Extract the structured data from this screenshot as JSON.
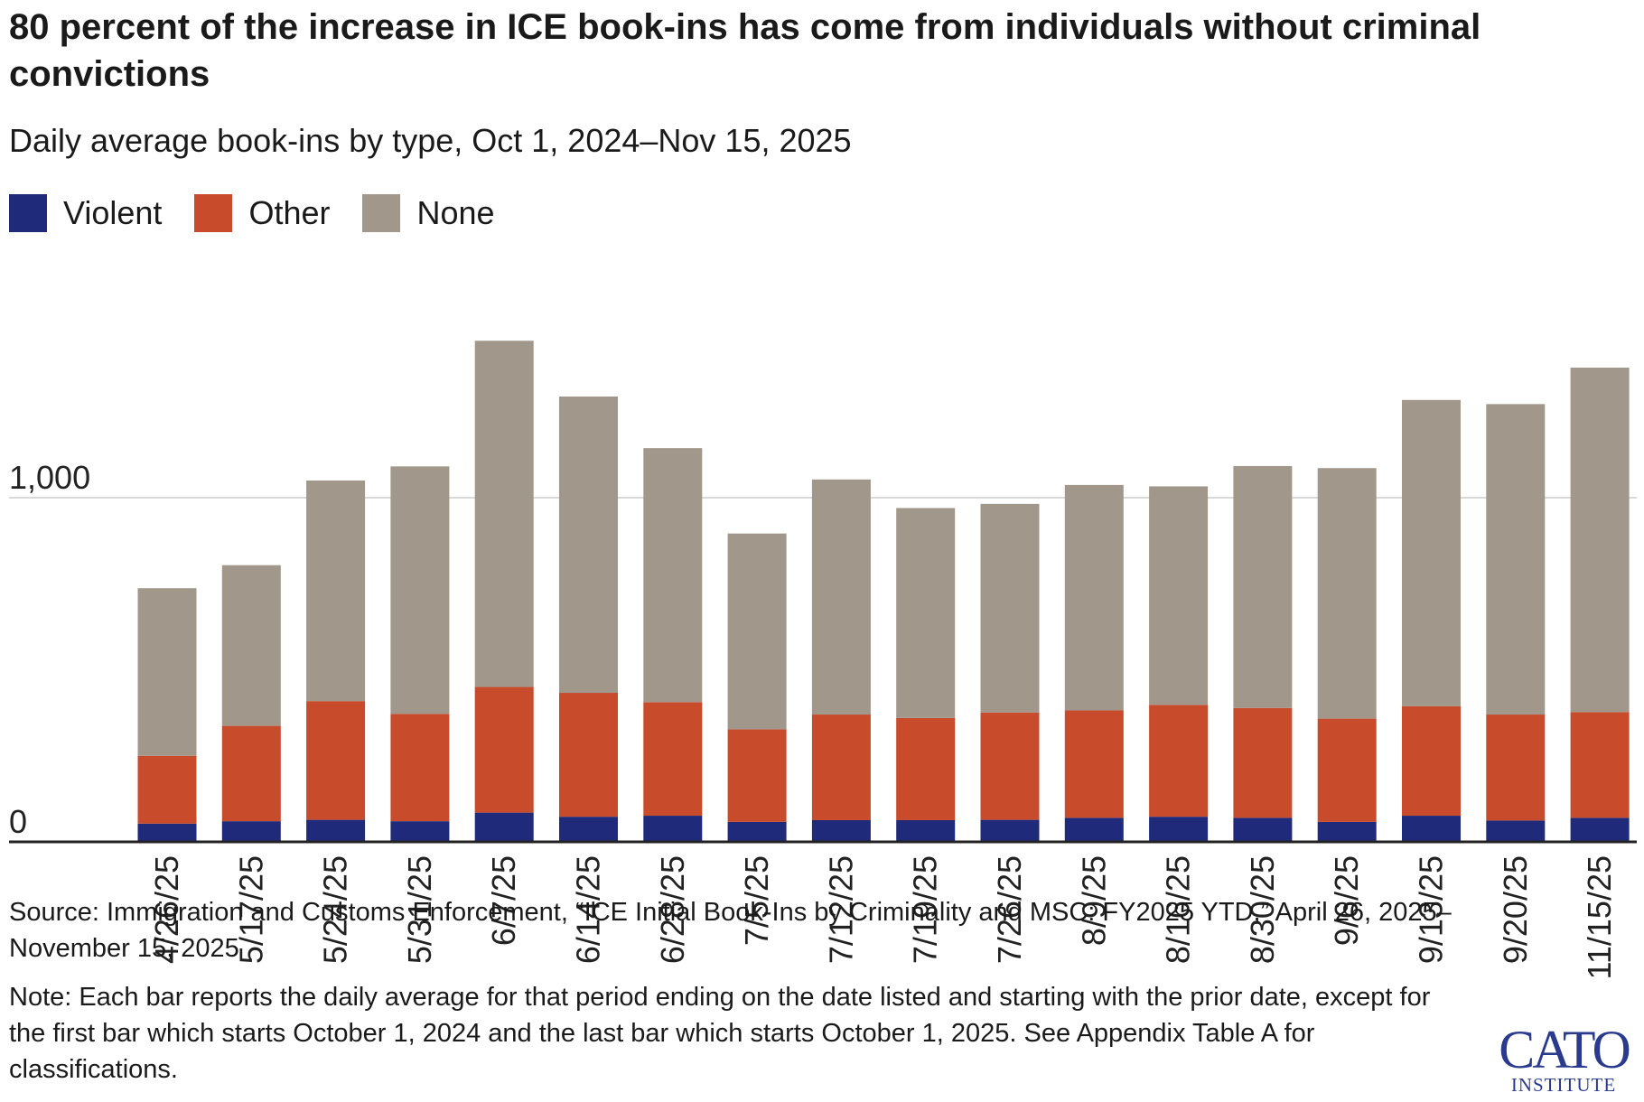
{
  "header": {
    "title": "80 percent of the increase in ICE book-ins has come from individuals without criminal convictions",
    "subtitle": "Daily average book-ins by type, Oct 1, 2024–Nov 15, 2025"
  },
  "legend": {
    "items": [
      {
        "label": "Violent",
        "color": "#1f2a7a"
      },
      {
        "label": "Other",
        "color": "#c84b2c"
      },
      {
        "label": "None",
        "color": "#a1978a"
      }
    ]
  },
  "chart_data": {
    "type": "bar",
    "stacked": true,
    "title": "80 percent of the increase in ICE book-ins has come from individuals without criminal convictions",
    "subtitle": "Daily average book-ins by type, Oct 1, 2024–Nov 15, 2025",
    "xlabel": "",
    "ylabel": "",
    "ylim": [
      0,
      1560
    ],
    "yticks": [
      0,
      1000
    ],
    "ytick_labels": [
      "0",
      "1,000"
    ],
    "grid": true,
    "legend_position": "top-left",
    "categories": [
      "4/26/25",
      "5/17/25",
      "5/24/25",
      "5/31/25",
      "6/7/25",
      "6/14/25",
      "6/28/25",
      "7/5/25",
      "7/12/25",
      "7/19/25",
      "7/26/25",
      "8/9/25",
      "8/16/25",
      "8/30/25",
      "9/6/25",
      "9/13/25",
      "9/20/25",
      "11/15/25"
    ],
    "series": [
      {
        "name": "Violent",
        "color": "#1f2a7a",
        "values": [
          53,
          60,
          64,
          60,
          85,
          73,
          76,
          58,
          63,
          63,
          64,
          70,
          73,
          70,
          58,
          76,
          62,
          70
        ]
      },
      {
        "name": "Other",
        "color": "#c84b2c",
        "values": [
          197,
          277,
          345,
          312,
          365,
          360,
          330,
          269,
          307,
          297,
          312,
          312,
          325,
          319,
          300,
          318,
          308,
          307
        ]
      },
      {
        "name": "None",
        "color": "#a1978a",
        "values": [
          487,
          467,
          641,
          719,
          1006,
          861,
          738,
          569,
          683,
          610,
          606,
          655,
          635,
          703,
          728,
          890,
          902,
          1001
        ]
      }
    ]
  },
  "footer": {
    "source": "Source: Immigration and Customs Enforcement, “ICE Initial Book-Ins by Criminality and MSC: FY2025 YTD,” April 26, 2025–November 15, 2025",
    "note": "Note: Each bar reports the daily average for that period ending on the date listed and starting with the prior date, except for the first bar which starts October 1, 2024 and the last bar which starts October 1, 2025. See Appendix Table A for classifications."
  },
  "logo": {
    "main": "CATO",
    "sub": "INSTITUTE"
  }
}
